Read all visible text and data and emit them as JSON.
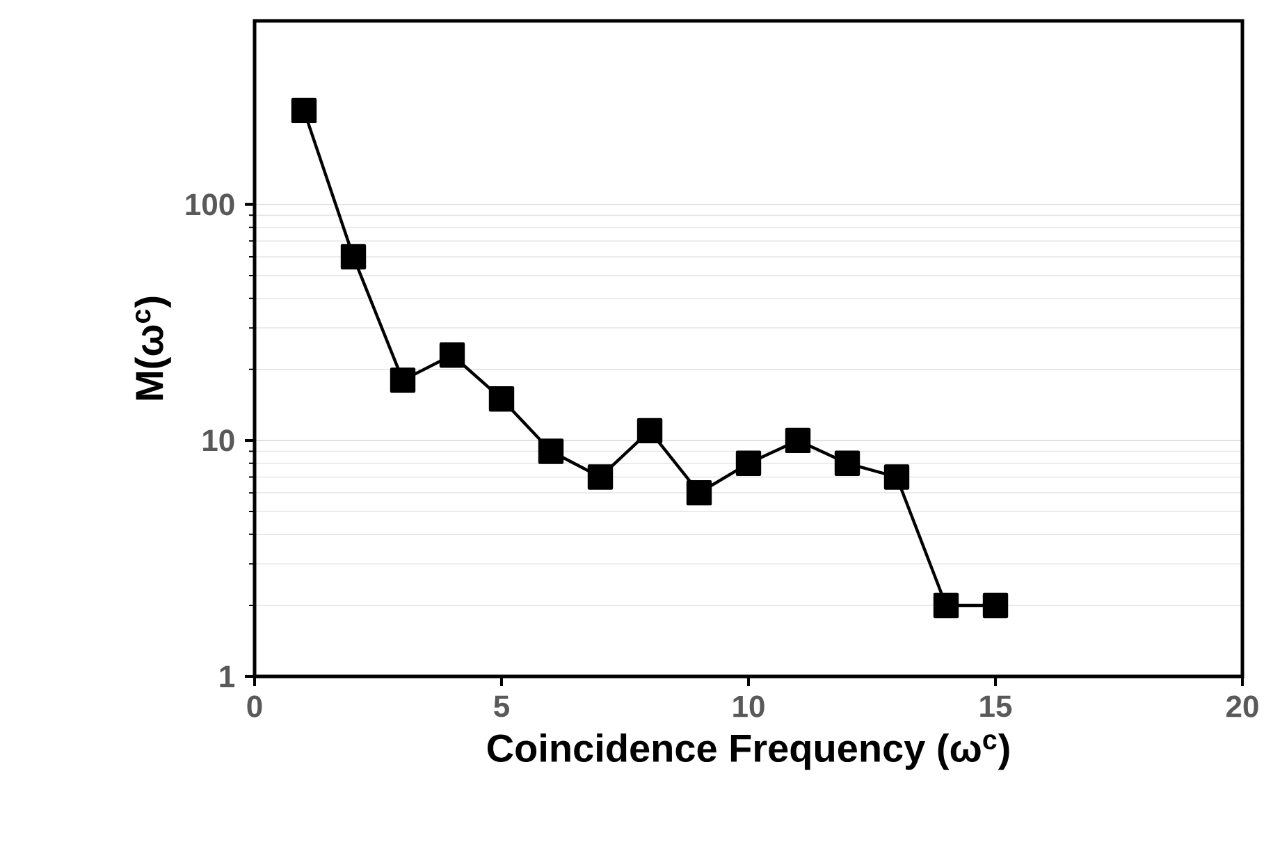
{
  "chart_data": {
    "type": "line",
    "xlabel": "Coincidence Frequency (ω$^{c}$)",
    "ylabel": "M(ω$^{c}$)",
    "x": [
      1,
      2,
      3,
      4,
      5,
      6,
      7,
      8,
      9,
      10,
      11,
      12,
      13,
      14,
      15
    ],
    "series": [
      {
        "color": "#000000",
        "values": [
          250,
          60,
          18,
          23,
          15,
          9,
          7,
          11,
          6,
          8,
          10,
          8,
          7,
          2,
          2
        ]
      }
    ],
    "xlim": [
      0,
      20
    ],
    "xticks": [
      0,
      5,
      10,
      15,
      20
    ],
    "ylim": [
      1,
      600
    ],
    "yticks": [
      1,
      10,
      100
    ],
    "log": "y",
    "grid": "y",
    "marker": "square",
    "line_style": "solid"
  }
}
